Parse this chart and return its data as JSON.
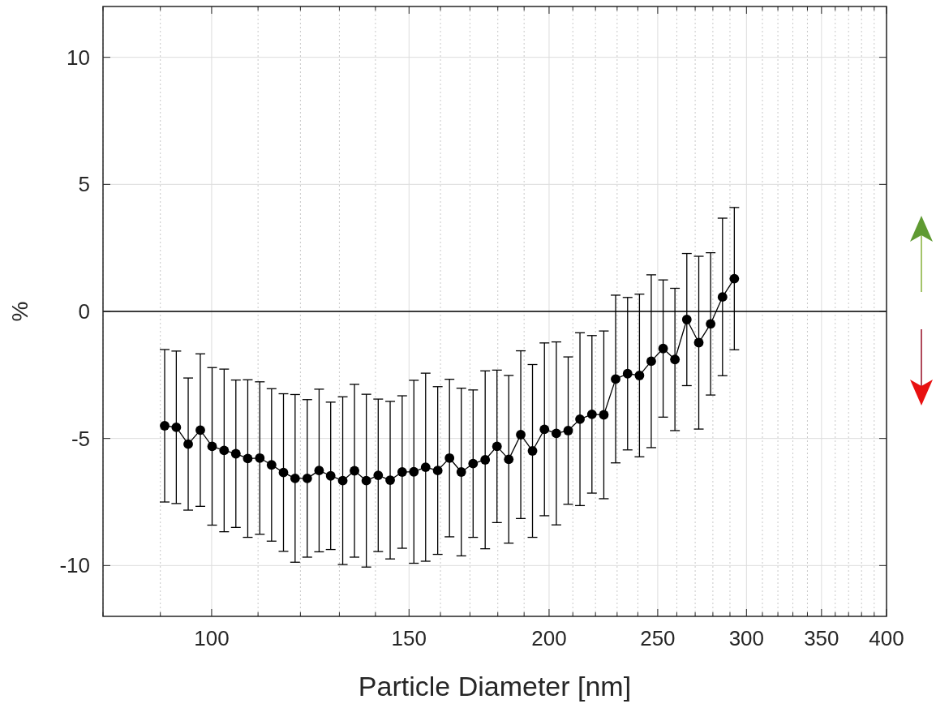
{
  "chart_data": {
    "type": "line",
    "xlabel": "Particle Diameter [nm]",
    "ylabel": "%",
    "x": [
      90.8,
      93.0,
      95.3,
      97.7,
      100.1,
      102.6,
      105.1,
      107.7,
      110.4,
      113.1,
      115.9,
      118.7,
      121.7,
      124.7,
      127.7,
      130.9,
      134.1,
      137.4,
      140.8,
      144.3,
      147.9,
      151.5,
      155.2,
      159.1,
      163.0,
      167.0,
      171.1,
      175.4,
      179.7,
      184.1,
      188.7,
      193.3,
      198.1,
      203.0,
      208.0,
      213.1,
      218.4,
      223.8,
      229.3,
      235.0,
      240.8,
      246.7,
      252.8,
      259.0,
      265.4,
      272.0,
      278.7,
      285.6,
      292.6
    ],
    "values": [
      -4.5,
      -4.56,
      -5.22,
      -4.67,
      -5.31,
      -5.47,
      -5.6,
      -5.79,
      -5.77,
      -6.04,
      -6.34,
      -6.57,
      -6.57,
      -6.26,
      -6.47,
      -6.66,
      -6.27,
      -6.66,
      -6.45,
      -6.64,
      -6.32,
      -6.31,
      -6.13,
      -6.26,
      -5.77,
      -6.32,
      -5.99,
      -5.84,
      -5.31,
      -5.82,
      -4.85,
      -5.49,
      -4.64,
      -4.8,
      -4.69,
      -4.24,
      -4.05,
      -4.07,
      -2.66,
      -2.45,
      -2.52,
      -1.96,
      -1.46,
      -1.89,
      -0.32,
      -1.23,
      -0.49,
      0.57,
      1.29
    ],
    "errors": [
      3.0,
      3.0,
      2.6,
      3.0,
      3.1,
      3.2,
      2.9,
      3.1,
      3.0,
      3.0,
      3.1,
      3.3,
      3.1,
      3.2,
      2.9,
      3.3,
      3.4,
      3.4,
      3.0,
      3.1,
      3.0,
      3.6,
      3.7,
      3.3,
      3.1,
      3.3,
      2.9,
      3.5,
      3.0,
      3.3,
      3.3,
      3.4,
      3.4,
      3.6,
      2.9,
      3.4,
      3.1,
      3.3,
      3.3,
      3.0,
      3.2,
      3.4,
      2.7,
      2.8,
      2.6,
      3.4,
      2.8,
      3.1,
      2.8
    ],
    "color": "#000000",
    "marker": "circle",
    "line_style": "solid",
    "xlim": [
      80,
      400
    ],
    "log": "x",
    "xticks": [
      {
        "value": 80,
        "label": null
      },
      {
        "value": 90,
        "label": null
      },
      100,
      {
        "value": 110,
        "label": null
      },
      {
        "value": 120,
        "label": null
      },
      {
        "value": 130,
        "label": null
      },
      {
        "value": 140,
        "label": null
      },
      150,
      {
        "value": 160,
        "label": null
      },
      {
        "value": 170,
        "label": null
      },
      {
        "value": 180,
        "label": null
      },
      {
        "value": 190,
        "label": null
      },
      200,
      {
        "value": 210,
        "label": null
      },
      {
        "value": 220,
        "label": null
      },
      {
        "value": 230,
        "label": null
      },
      {
        "value": 240,
        "label": null
      },
      250,
      {
        "value": 260,
        "label": null
      },
      {
        "value": 270,
        "label": null
      },
      {
        "value": 280,
        "label": null
      },
      {
        "value": 290,
        "label": null
      },
      300,
      {
        "value": 310,
        "label": null
      },
      {
        "value": 320,
        "label": null
      },
      {
        "value": 330,
        "label": null
      },
      {
        "value": 340,
        "label": null
      },
      350,
      {
        "value": 360,
        "label": null
      },
      {
        "value": 370,
        "label": null
      },
      {
        "value": 380,
        "label": null
      },
      {
        "value": 390,
        "label": null
      },
      400
    ],
    "ylim": [
      -12,
      12
    ],
    "yticks": [
      -10,
      -5,
      0,
      5,
      10
    ],
    "grid": true,
    "ref_lines": [
      {
        "axis": "y",
        "value": 0,
        "color": "#000000"
      }
    ]
  }
}
